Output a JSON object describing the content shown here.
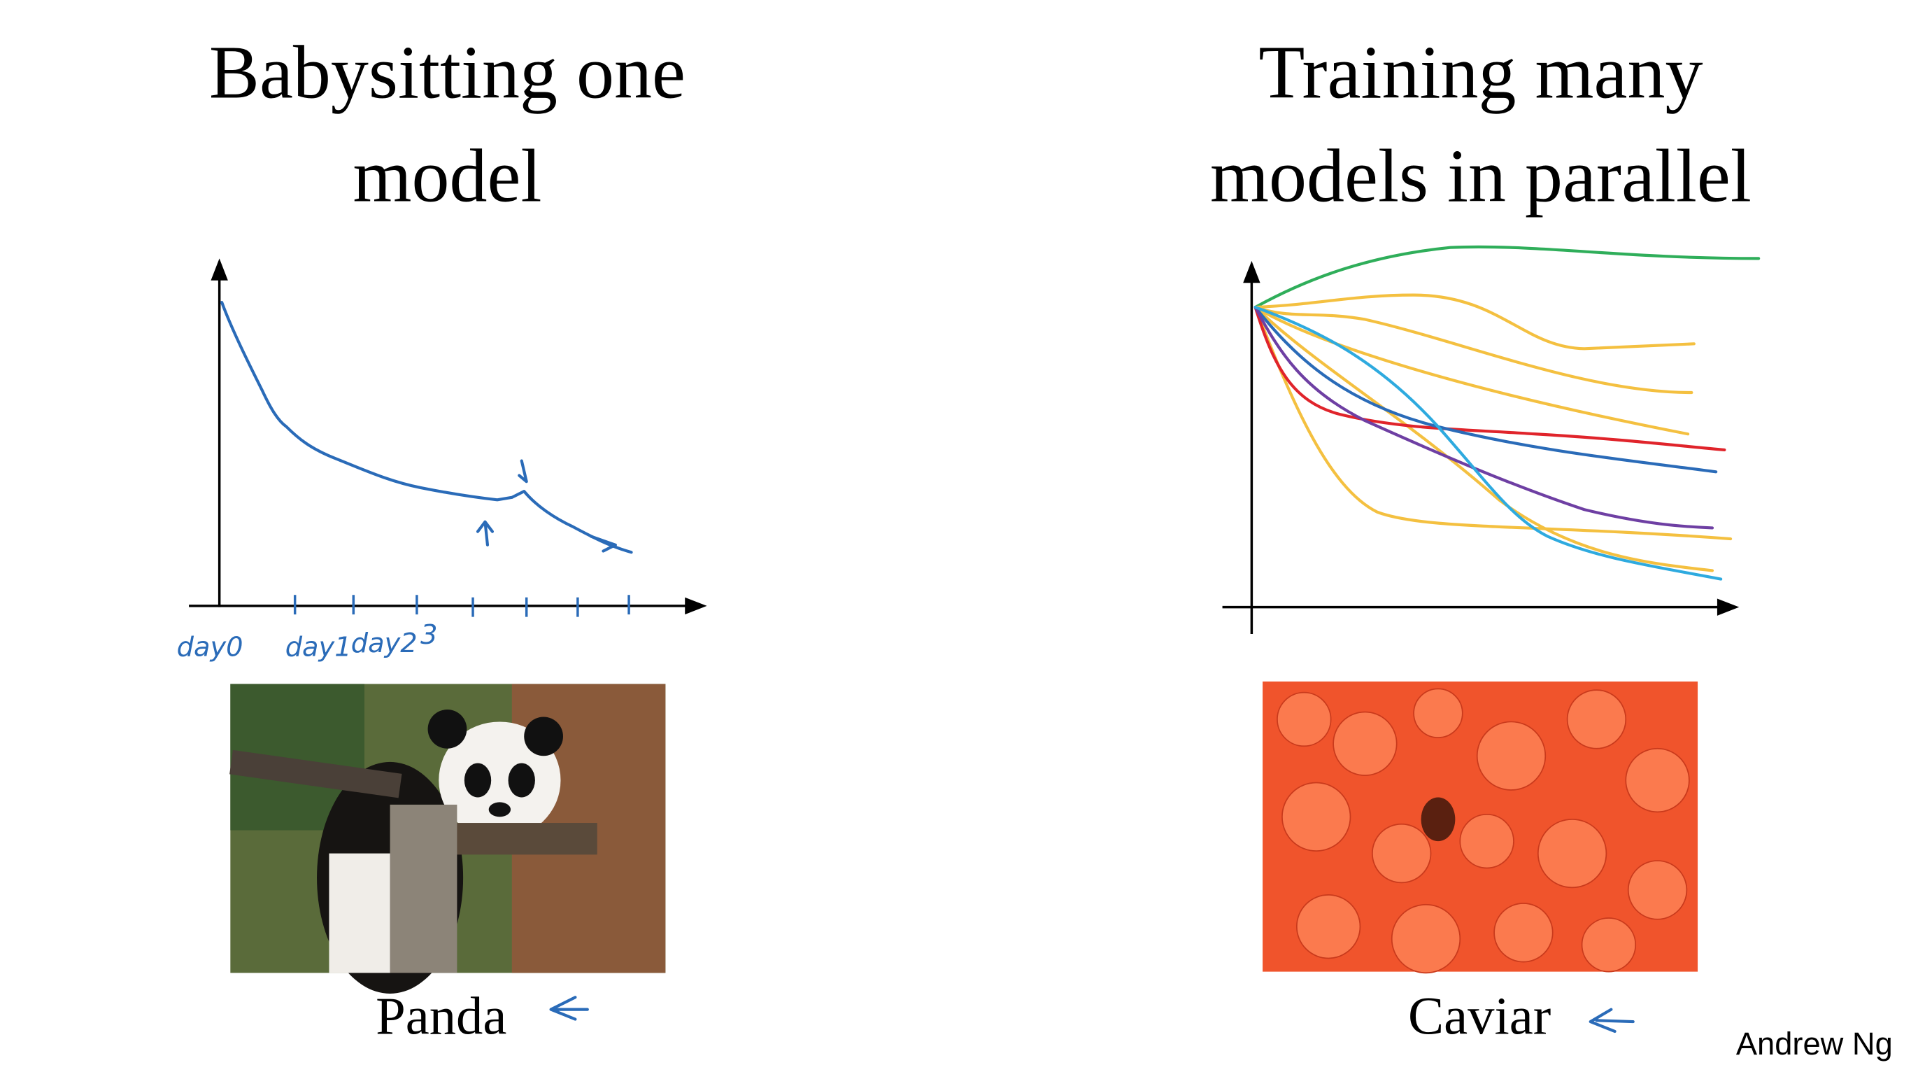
{
  "slide": {
    "left": {
      "title": [
        "Babysitting one",
        "model"
      ],
      "axis_labels": [
        "day0",
        "day1",
        "day2",
        "3"
      ],
      "caption": "Panda"
    },
    "right": {
      "title": [
        "Training many",
        "models in parallel"
      ],
      "caption": "Caviar"
    },
    "footer": "Andrew Ng"
  }
}
